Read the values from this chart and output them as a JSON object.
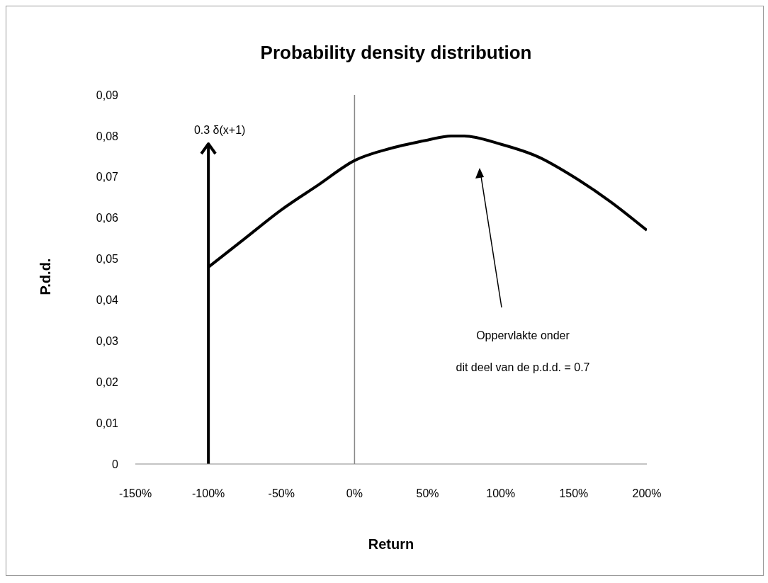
{
  "chart_data": {
    "type": "line",
    "title": "Probability density distribution",
    "xlabel": "Return",
    "ylabel": "P.d.d.",
    "xlim": [
      -150,
      200
    ],
    "xticks": [
      {
        "value": -150,
        "label": "-150%"
      },
      {
        "value": -100,
        "label": "-100%"
      },
      {
        "value": -50,
        "label": "-50%"
      },
      {
        "value": 0,
        "label": "0%"
      },
      {
        "value": 50,
        "label": "50%"
      },
      {
        "value": 100,
        "label": "100%"
      },
      {
        "value": 150,
        "label": "150%"
      },
      {
        "value": 200,
        "label": "200%"
      }
    ],
    "ylim": [
      0,
      0.09
    ],
    "yticks": [
      0,
      {
        "value": 0.01,
        "label": "0,01"
      },
      {
        "value": 0.02,
        "label": "0,02"
      },
      {
        "value": 0.03,
        "label": "0,03"
      },
      {
        "value": 0.04,
        "label": "0,04"
      },
      {
        "value": 0.05,
        "label": "0,05"
      },
      {
        "value": 0.06,
        "label": "0,06"
      },
      {
        "value": 0.07,
        "label": "0,07"
      },
      {
        "value": 0.08,
        "label": "0,08"
      },
      {
        "value": 0.09,
        "label": "0,09"
      }
    ],
    "series": [
      {
        "color": "#000000",
        "x": [
          -100,
          -75,
          -50,
          -25,
          0,
          25,
          50,
          66,
          75,
          100,
          125,
          150,
          175,
          200
        ],
        "values": [
          0.048,
          0.055,
          0.062,
          0.068,
          0.074,
          0.077,
          0.079,
          0.08,
          0.08,
          0.078,
          0.075,
          0.07,
          0.064,
          0.057
        ]
      }
    ],
    "ref_lines": [
      {
        "axis": "x",
        "value": -100,
        "label": "0.3 δ(x+1)",
        "color": "#000000",
        "line_style": "solid"
      }
    ],
    "annotations": [
      "Oppervlakte onder",
      "dit deel van de p.d.d. = 0.7"
    ],
    "grid": false,
    "marker": "none",
    "line_style": "solid"
  }
}
